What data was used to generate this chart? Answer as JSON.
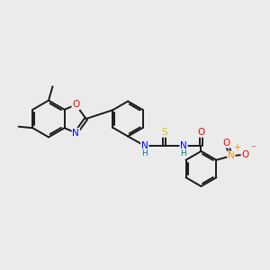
{
  "bg_color": "#ebebeb",
  "bond_color": "#1a1a1a",
  "bond_width": 1.4,
  "atom_colors": {
    "N": "#0000ff",
    "O": "#ff0000",
    "S": "#cccc00",
    "H": "#008080",
    "C": "#1a1a1a",
    "NO2_N": "#ff8c00"
  },
  "figsize": [
    3.0,
    3.0
  ],
  "dpi": 100,
  "xlim": [
    0,
    10
  ],
  "ylim": [
    0,
    10
  ]
}
